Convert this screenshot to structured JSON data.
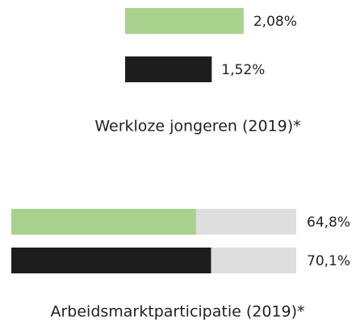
{
  "chart_data": [
    {
      "type": "bar",
      "orientation": "horizontal",
      "title": "Werkloze jongeren (2019)*",
      "values": [
        2.08,
        1.52
      ],
      "value_labels": [
        "2,08%",
        "1,52%"
      ],
      "colors": [
        "#a9d18e",
        "#1d1d1d"
      ],
      "xlim": [
        0,
        5
      ]
    },
    {
      "type": "bar",
      "orientation": "horizontal",
      "title": "Arbeidsmarktparticipatie (2019)*",
      "values": [
        64.8,
        70.1
      ],
      "value_labels": [
        "64,8%",
        "70,1%"
      ],
      "colors": [
        "#a9d18e",
        "#1d1d1d"
      ],
      "xlim": [
        0,
        100
      ],
      "track_color": "#dedede"
    }
  ]
}
